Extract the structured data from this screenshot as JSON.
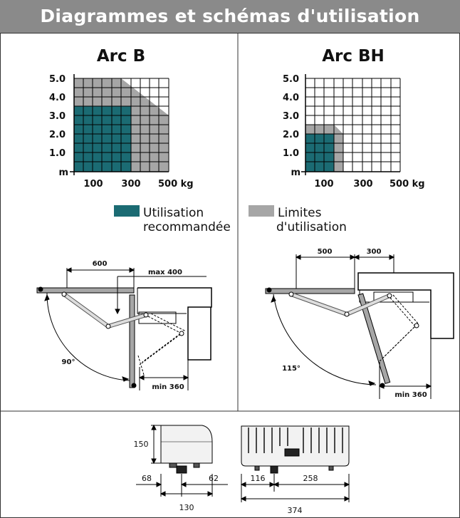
{
  "header": {
    "title": "Diagrammes et schémas d'utilisation"
  },
  "colors": {
    "recommended": "#1b6b73",
    "limit": "#a6a6a6",
    "header_bg": "#8a8a8a"
  },
  "charts": [
    {
      "title": "Arc B",
      "y_ticks": [
        "5.0",
        "4.0",
        "3.0",
        "2.0",
        "1.0",
        "m"
      ],
      "x_ticks": [
        "100",
        "300",
        "500 kg"
      ]
    },
    {
      "title": "Arc BH",
      "y_ticks": [
        "5.0",
        "4.0",
        "3.0",
        "2.0",
        "1.0",
        "m"
      ],
      "x_ticks": [
        "100",
        "300",
        "500 kg"
      ]
    }
  ],
  "legend": {
    "recommended": {
      "line1": "Utilisation",
      "line2": "recommandée"
    },
    "limit": {
      "line1": "Limites",
      "line2": "d'utilisation"
    }
  },
  "install_left": {
    "dim_600": "600",
    "dim_max400": "max 400",
    "angle": "90°",
    "dim_min360": "min 360"
  },
  "install_right": {
    "dim_500": "500",
    "dim_300": "300",
    "angle": "115°",
    "dim_min360": "min 360"
  },
  "dimensions": {
    "h150": "150",
    "w68": "68",
    "w62": "62",
    "w130": "130",
    "w116": "116",
    "w258": "258",
    "w374": "374"
  }
}
